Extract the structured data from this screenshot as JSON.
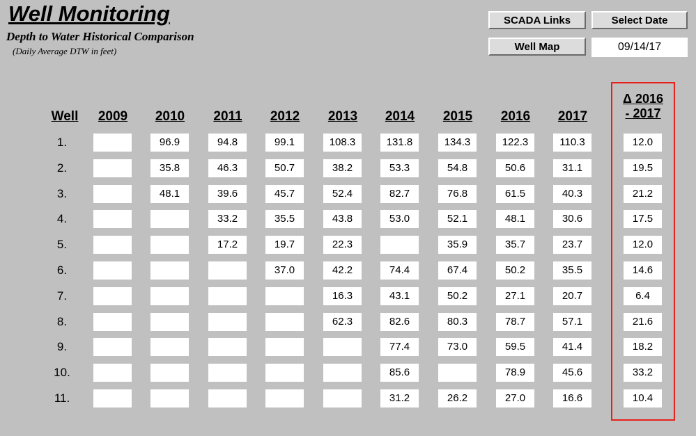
{
  "header": {
    "title": "Well Monitoring",
    "subtitle": "Depth to Water Historical Comparison",
    "note": "(Daily Average DTW in feet)"
  },
  "buttons": {
    "scada": "SCADA Links",
    "select_date": "Select Date",
    "well_map": "Well Map"
  },
  "date": "09/14/17",
  "table": {
    "well_header": "Well",
    "years": [
      "2009",
      "2010",
      "2011",
      "2012",
      "2013",
      "2014",
      "2015",
      "2016",
      "2017"
    ],
    "delta_header_line1": "Δ 2016",
    "delta_header_line2": "- 2017",
    "rows": [
      {
        "well": "1.",
        "values": [
          "",
          "96.9",
          "94.8",
          "99.1",
          "108.3",
          "131.8",
          "134.3",
          "122.3",
          "110.3"
        ],
        "delta": "12.0"
      },
      {
        "well": "2.",
        "values": [
          "",
          "35.8",
          "46.3",
          "50.7",
          "38.2",
          "53.3",
          "54.8",
          "50.6",
          "31.1"
        ],
        "delta": "19.5"
      },
      {
        "well": "3.",
        "values": [
          "",
          "48.1",
          "39.6",
          "45.7",
          "52.4",
          "82.7",
          "76.8",
          "61.5",
          "40.3"
        ],
        "delta": "21.2"
      },
      {
        "well": "4.",
        "values": [
          "",
          "",
          "33.2",
          "35.5",
          "43.8",
          "53.0",
          "52.1",
          "48.1",
          "30.6"
        ],
        "delta": "17.5"
      },
      {
        "well": "5.",
        "values": [
          "",
          "",
          "17.2",
          "19.7",
          "22.3",
          "",
          "35.9",
          "35.7",
          "23.7"
        ],
        "delta": "12.0"
      },
      {
        "well": "6.",
        "values": [
          "",
          "",
          "",
          "37.0",
          "42.2",
          "74.4",
          "67.4",
          "50.2",
          "35.5"
        ],
        "delta": "14.6"
      },
      {
        "well": "7.",
        "values": [
          "",
          "",
          "",
          "",
          "16.3",
          "43.1",
          "50.2",
          "27.1",
          "20.7"
        ],
        "delta": "6.4"
      },
      {
        "well": "8.",
        "values": [
          "",
          "",
          "",
          "",
          "62.3",
          "82.6",
          "80.3",
          "78.7",
          "57.1"
        ],
        "delta": "21.6"
      },
      {
        "well": "9.",
        "values": [
          "",
          "",
          "",
          "",
          "",
          "77.4",
          "73.0",
          "59.5",
          "41.4"
        ],
        "delta": "18.2"
      },
      {
        "well": "10.",
        "values": [
          "",
          "",
          "",
          "",
          "",
          "85.6",
          "",
          "78.9",
          "45.6"
        ],
        "delta": "33.2"
      },
      {
        "well": "11.",
        "values": [
          "",
          "",
          "",
          "",
          "",
          "31.2",
          "26.2",
          "27.0",
          "16.6"
        ],
        "delta": "10.4"
      }
    ]
  },
  "colors": {
    "background": "#c0c0c0",
    "highlight_border": "#e8211c"
  }
}
